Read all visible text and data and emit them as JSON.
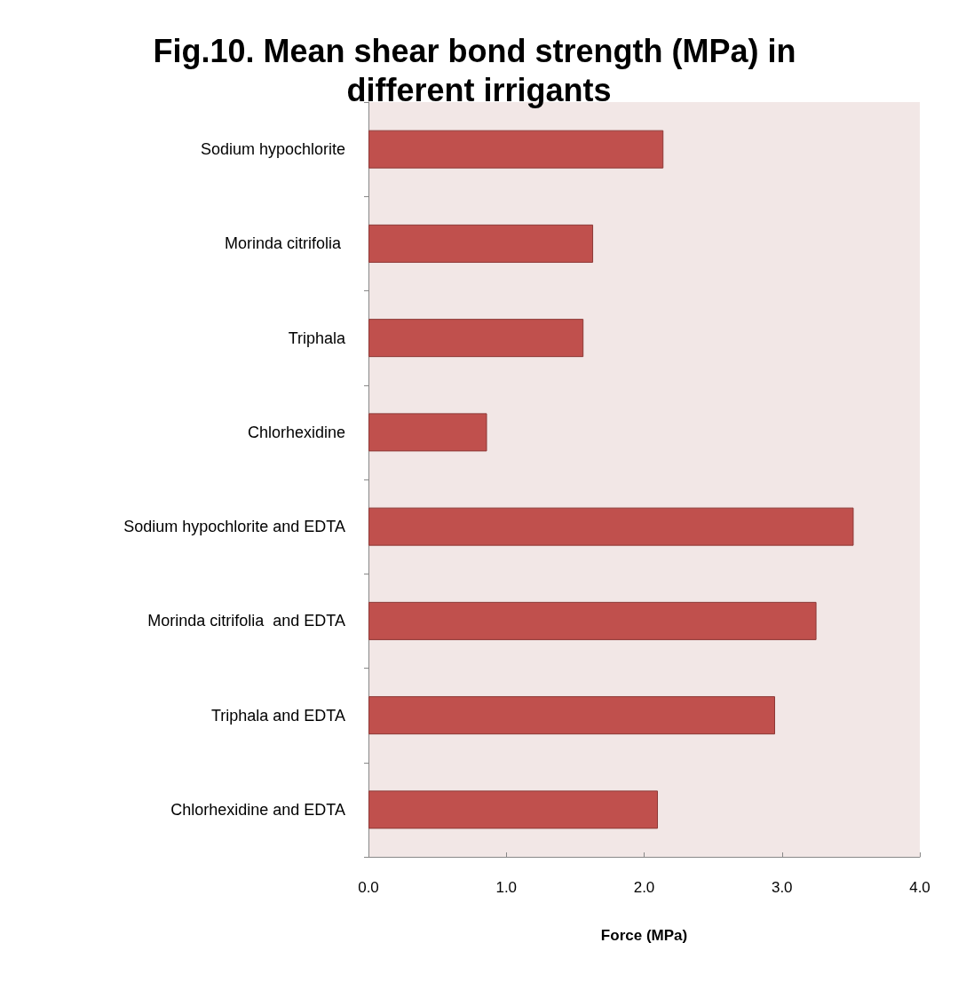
{
  "chart_data": {
    "type": "bar",
    "orientation": "horizontal",
    "title": "Fig.10. Mean shear bond strength (MPa) in different irrigants",
    "xlabel": "Force (MPa)",
    "categories": [
      "Sodium hypochlorite",
      "Morinda citrifolia ",
      "Triphala",
      "Chlorhexidine",
      "Sodium hypochlorite and EDTA",
      "Morinda citrifolia  and EDTA",
      "Triphala and EDTA",
      "Chlorhexidine and EDTA"
    ],
    "values": [
      2.14,
      1.63,
      1.56,
      0.86,
      3.52,
      3.25,
      2.95,
      2.1
    ],
    "color": "#c0504d",
    "xlim": [
      0,
      4
    ],
    "xticks": [
      {
        "value": 0,
        "label": "0.0"
      },
      {
        "value": 1,
        "label": "1.0"
      },
      {
        "value": 2,
        "label": "2.0"
      },
      {
        "value": 3,
        "label": "3.0"
      },
      {
        "value": 4,
        "label": "4.0"
      }
    ],
    "grid": false
  }
}
